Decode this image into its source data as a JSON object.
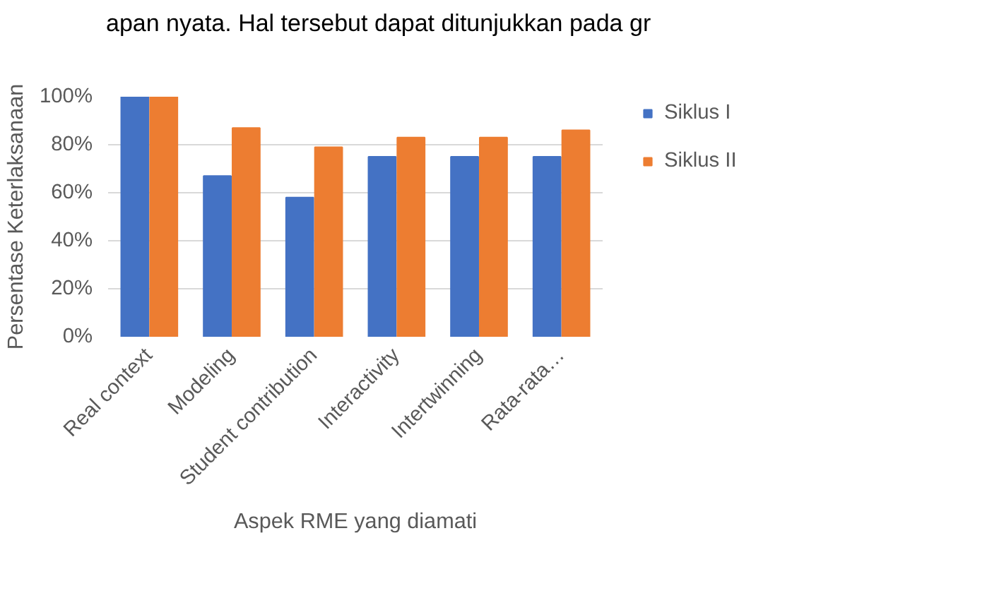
{
  "chart_data": {
    "type": "bar",
    "xlabel": "Aspek RME yang diamati",
    "ylabel": "Persentase Keterlaksanaan",
    "categories": [
      "Real context",
      "Modeling",
      "Student contribution",
      "Interactivity",
      "Intertwinning",
      "Rata-rata…"
    ],
    "series": [
      {
        "name": "Siklus I",
        "color": "#4472c4",
        "values": [
          100,
          67,
          58,
          75,
          75,
          75
        ]
      },
      {
        "name": "Siklus II",
        "color": "#ed7d31",
        "values": [
          100,
          87,
          79,
          83,
          83,
          86
        ]
      }
    ],
    "ylim": [
      0,
      100
    ],
    "yticks": [
      {
        "value": 0,
        "label": "0%"
      },
      {
        "value": 20,
        "label": "20%"
      },
      {
        "value": 40,
        "label": "40%"
      },
      {
        "value": 60,
        "label": "60%"
      },
      {
        "value": 80,
        "label": "80%"
      },
      {
        "value": 100,
        "label": "100%"
      }
    ],
    "grid": "y",
    "legend": "right",
    "annotations": [
      "apan nyata. Hal tersebut dapat ditunjukkan pada gr"
    ]
  }
}
